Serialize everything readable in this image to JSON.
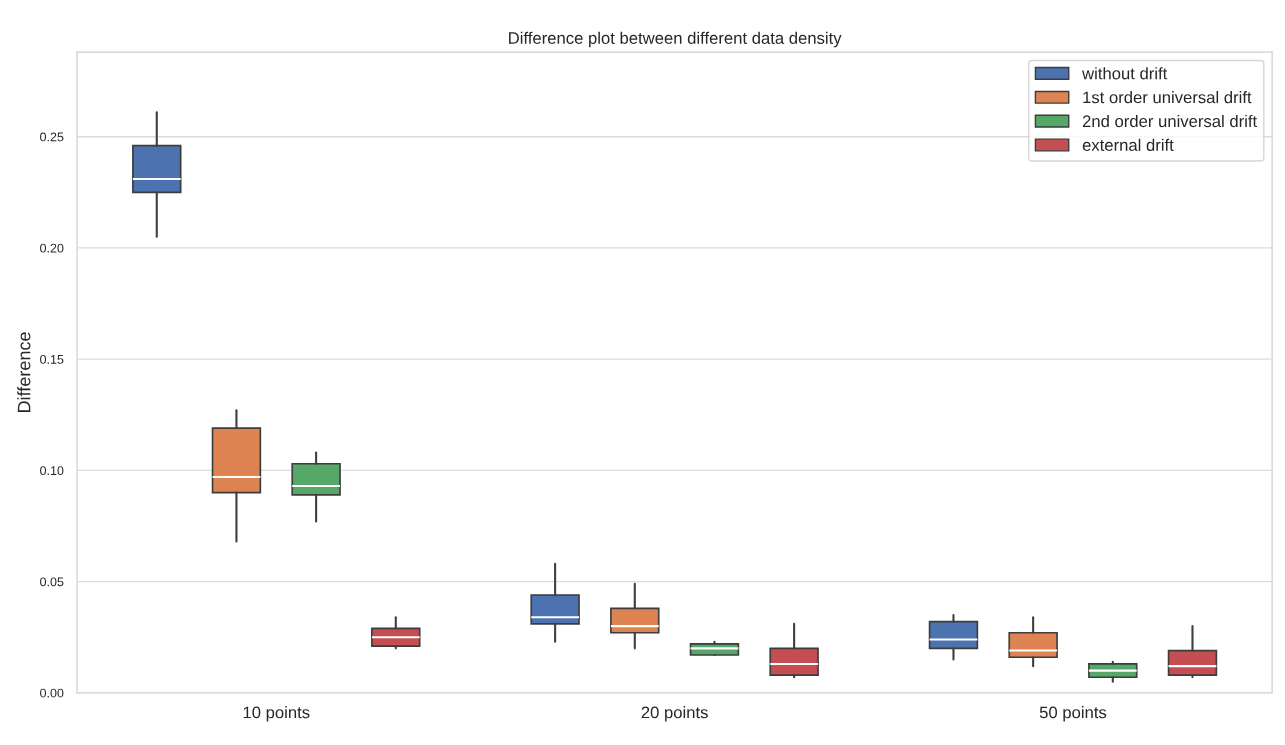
{
  "chart_data": {
    "type": "box",
    "title": "Difference plot between different data density",
    "ylabel": "Difference",
    "categories": [
      "10 points",
      "20 points",
      "50 points"
    ],
    "ylim": [
      0,
      0.288
    ],
    "yticks": [
      {
        "value": 0,
        "label": "0.00"
      },
      {
        "value": 0.05,
        "label": "0.05"
      },
      {
        "value": 0.1,
        "label": "0.10"
      },
      {
        "value": 0.15,
        "label": "0.15"
      },
      {
        "value": 0.2,
        "label": "0.20"
      },
      {
        "value": 0.25,
        "label": "0.25"
      }
    ],
    "grid": "y",
    "legend": "top right",
    "series": [
      {
        "name": "without drift",
        "color": "#4c72b0",
        "boxes": [
          {
            "low": 0.205,
            "q1": 0.225,
            "median": 0.231,
            "q3": 0.246,
            "high": 0.261
          },
          {
            "low": 0.023,
            "q1": 0.031,
            "median": 0.034,
            "q3": 0.044,
            "high": 0.058
          },
          {
            "low": 0.015,
            "q1": 0.02,
            "median": 0.024,
            "q3": 0.032,
            "high": 0.035
          }
        ]
      },
      {
        "name": "1st order universal drift",
        "color": "#dd8452",
        "boxes": [
          {
            "low": 0.068,
            "q1": 0.09,
            "median": 0.097,
            "q3": 0.119,
            "high": 0.127
          },
          {
            "low": 0.02,
            "q1": 0.027,
            "median": 0.03,
            "q3": 0.038,
            "high": 0.049
          },
          {
            "low": 0.012,
            "q1": 0.016,
            "median": 0.019,
            "q3": 0.027,
            "high": 0.034
          }
        ]
      },
      {
        "name": "2nd order universal drift",
        "color": "#55a868",
        "boxes": [
          {
            "low": 0.077,
            "q1": 0.089,
            "median": 0.093,
            "q3": 0.103,
            "high": 0.108
          },
          {
            "low": 0.017,
            "q1": 0.017,
            "median": 0.02,
            "q3": 0.022,
            "high": 0.023
          },
          {
            "low": 0.005,
            "q1": 0.007,
            "median": 0.01,
            "q3": 0.013,
            "high": 0.014
          }
        ]
      },
      {
        "name": "external drift",
        "color": "#c44e52",
        "boxes": [
          {
            "low": 0.02,
            "q1": 0.021,
            "median": 0.025,
            "q3": 0.029,
            "high": 0.034
          },
          {
            "low": 0.007,
            "q1": 0.008,
            "median": 0.013,
            "q3": 0.02,
            "high": 0.031
          },
          {
            "low": 0.007,
            "q1": 0.008,
            "median": 0.012,
            "q3": 0.019,
            "high": 0.03
          }
        ]
      }
    ]
  }
}
